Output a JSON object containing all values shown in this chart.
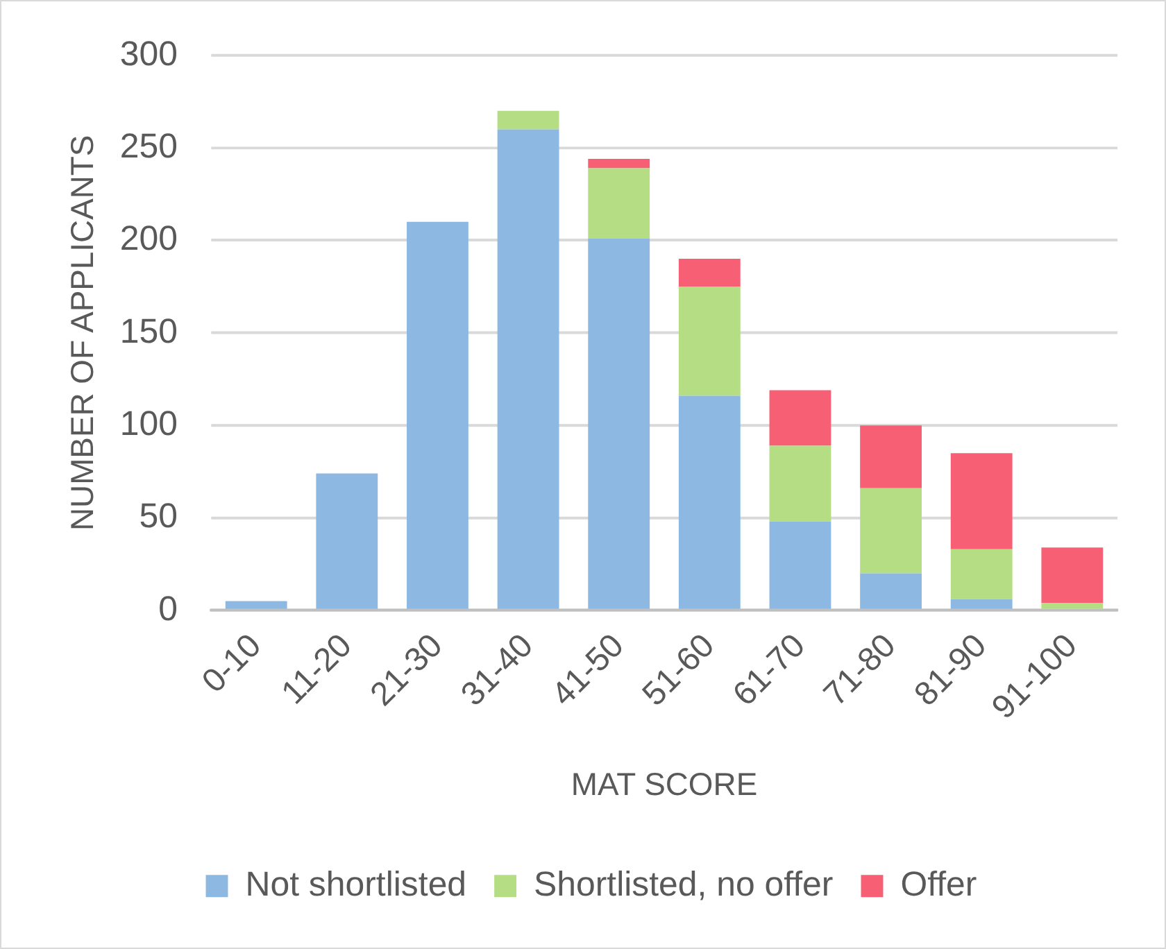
{
  "chart_data": {
    "type": "bar",
    "xlabel": "MAT SCORE",
    "ylabel": "NUMBER OF APPLICANTS",
    "categories": [
      "0-10",
      "11-20",
      "21-30",
      "31-40",
      "41-50",
      "51-60",
      "61-70",
      "71-80",
      "81-90",
      "91-100"
    ],
    "series": [
      {
        "name": "Not shortlisted",
        "color": "#8db8e2",
        "values": [
          5,
          74,
          210,
          260,
          201,
          116,
          48,
          20,
          6,
          0
        ]
      },
      {
        "name": "Shortlisted, no offer",
        "color": "#b5dd84",
        "values": [
          0,
          0,
          0,
          10,
          38,
          59,
          41,
          46,
          27,
          4
        ]
      },
      {
        "name": "Offer",
        "color": "#f65f74",
        "values": [
          0,
          0,
          0,
          0,
          5,
          15,
          30,
          34,
          52,
          30
        ]
      }
    ],
    "stacked": true,
    "ylim": [
      0,
      300
    ],
    "yticks": [
      0,
      50,
      100,
      150,
      200,
      250,
      300
    ],
    "grid": "y",
    "legend": "bottom"
  }
}
